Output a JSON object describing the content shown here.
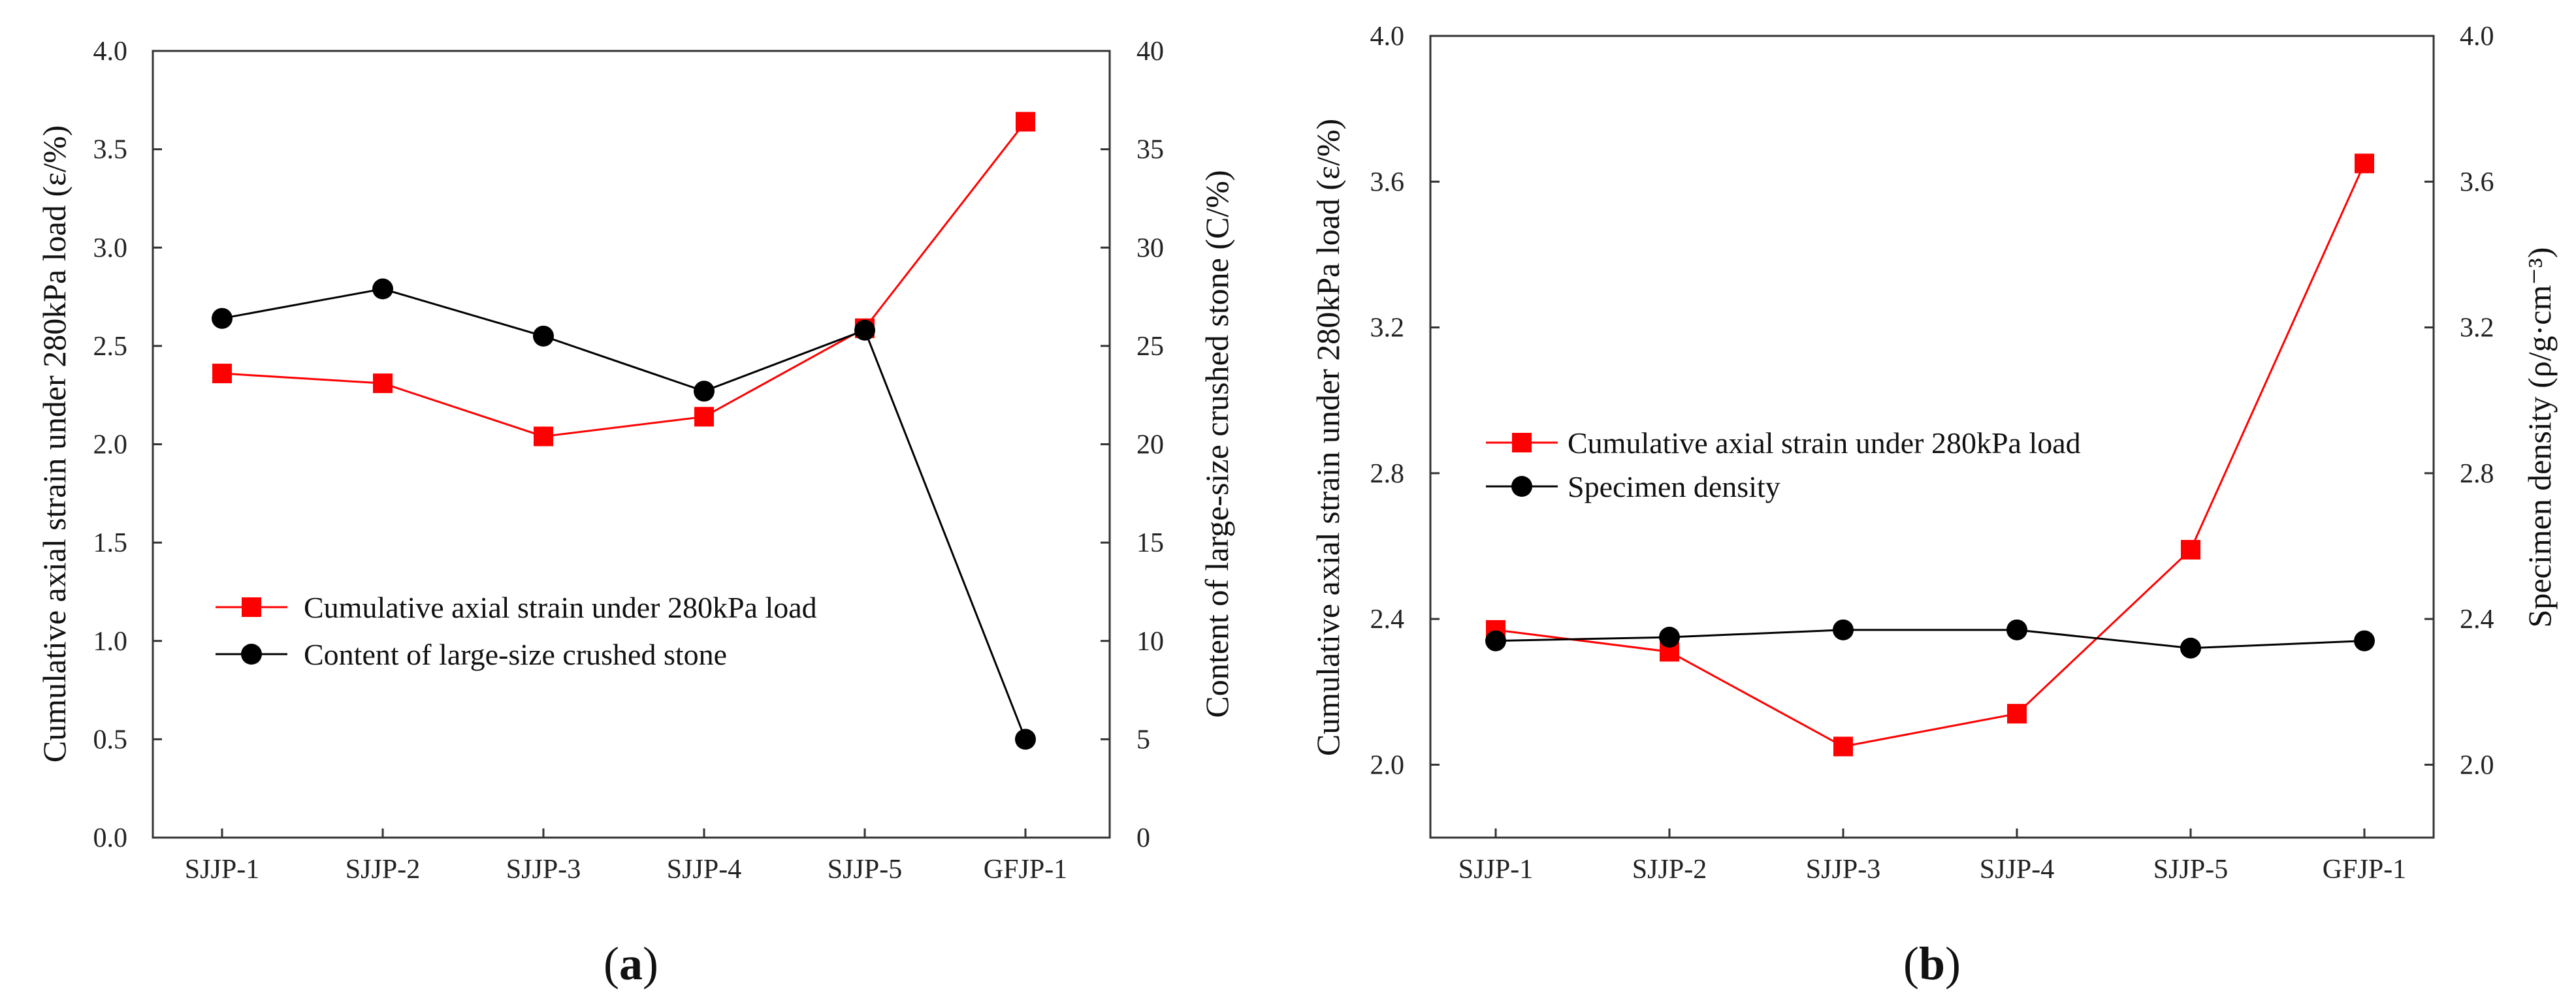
{
  "chart_data": [
    {
      "type": "line",
      "panel_label": {
        "open": "(",
        "letter": "a",
        "close": ")"
      },
      "categories": [
        "SJJP-1",
        "SJJP-2",
        "SJJP-3",
        "SJJP-4",
        "SJJP-5",
        "GFJP-1"
      ],
      "ylabel": "Cumulative axial strain under 280kPa load (ε/%)",
      "y2label": "Content of large-size crushed stone (C/%)",
      "ylim": [
        0,
        4.0
      ],
      "y2lim": [
        0,
        40
      ],
      "yticks": [
        "0.0",
        "0.5",
        "1.0",
        "1.5",
        "2.0",
        "2.5",
        "3.0",
        "3.5",
        "4.0"
      ],
      "y2ticks": [
        "0",
        "5",
        "10",
        "15",
        "20",
        "25",
        "30",
        "35",
        "40"
      ],
      "grid": false,
      "legend_position": "center-left",
      "series": [
        {
          "name": "Cumulative axial strain under 280kPa load",
          "axis": "left",
          "color": "#ff0000",
          "marker": "square",
          "values": [
            2.36,
            2.31,
            2.04,
            2.14,
            2.59,
            3.64
          ]
        },
        {
          "name": "Content of large-size crushed stone",
          "axis": "right",
          "color": "#000000",
          "marker": "circle",
          "values": [
            26.4,
            27.9,
            25.5,
            22.7,
            25.8,
            5.0
          ]
        }
      ]
    },
    {
      "type": "line",
      "panel_label": {
        "open": "(",
        "letter": "b",
        "close": ")"
      },
      "categories": [
        "SJJP-1",
        "SJJP-2",
        "SJJP-3",
        "SJJP-4",
        "SJJP-5",
        "GFJP-1"
      ],
      "ylabel": "Cumulative axial strain under 280kPa load (ε/%)",
      "y2label": "Specimen density (ρ/g·cm⁻³)",
      "ylim": [
        1.8,
        4.0
      ],
      "y2lim": [
        1.8,
        4.0
      ],
      "yticks": [
        "2.0",
        "2.4",
        "2.8",
        "3.2",
        "3.6",
        "4.0"
      ],
      "y2ticks": [
        "2.0",
        "2.4",
        "2.8",
        "3.2",
        "3.6",
        "4.0"
      ],
      "grid": false,
      "legend_position": "center-left",
      "series": [
        {
          "name": "Cumulative axial strain under 280kPa load",
          "axis": "left",
          "color": "#ff0000",
          "marker": "square",
          "values": [
            2.37,
            2.31,
            2.05,
            2.14,
            2.59,
            3.65
          ]
        },
        {
          "name": "Specimen density",
          "axis": "right",
          "color": "#000000",
          "marker": "circle",
          "values": [
            2.34,
            2.35,
            2.37,
            2.37,
            2.32,
            2.34
          ]
        }
      ]
    }
  ]
}
